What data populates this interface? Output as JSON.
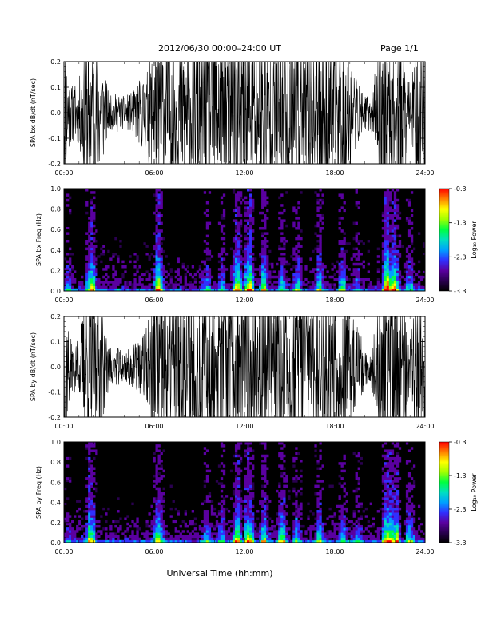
{
  "header": {
    "title": "2012/06/30   00:00–24:00 UT",
    "page": "Page 1/1"
  },
  "footer": {
    "xlabel": "Universal Time (hh:mm)"
  },
  "colors": {
    "trace": "#000000",
    "spectrogram_background": "#000000",
    "colormap": [
      "#000000",
      "#2a0050",
      "#5a00a0",
      "#3030ff",
      "#00a0ff",
      "#00e0c0",
      "#00ff40",
      "#a0ff00",
      "#ffff00",
      "#ff8000",
      "#ff0000"
    ]
  },
  "chart_data": [
    {
      "type": "line",
      "ylabel": "SPA bx dB/dt (nT/sec)",
      "xlim": [
        "00:00",
        "24:00"
      ],
      "ylim": [
        -0.2,
        0.2
      ],
      "xticks": [
        "00:00",
        "06:00",
        "12:00",
        "18:00",
        "24:00"
      ],
      "yticks": [
        "-0.2",
        "-0.1",
        "0.0",
        "0.1",
        "0.2"
      ],
      "series": [
        {
          "x_hours": [
            0,
            0.5,
            1,
            1.5,
            1.8,
            2,
            2.5,
            3,
            3.5,
            4,
            4.5,
            5,
            5.5,
            5.8,
            6.2,
            6.5,
            7,
            7.5,
            8,
            8.5,
            9,
            9.5,
            10,
            10.5,
            10.8,
            11,
            11.5,
            12,
            12.5,
            13,
            13.5,
            14,
            14.5,
            15,
            15.5,
            16,
            16.5,
            17,
            17.5,
            18,
            18.5,
            19,
            19.5,
            20,
            20.5,
            21,
            21.3,
            21.6,
            22,
            22.5,
            23,
            23.5,
            24
          ],
          "envelope_nT_per_s": [
            0.2,
            0.07,
            0.08,
            0.2,
            0.2,
            0.2,
            0.15,
            0.04,
            0.05,
            0.04,
            0.05,
            0.08,
            0.1,
            0.15,
            0.2,
            0.2,
            0.2,
            0.2,
            0.2,
            0.2,
            0.2,
            0.2,
            0.2,
            0.2,
            0.2,
            0.2,
            0.2,
            0.2,
            0.2,
            0.2,
            0.2,
            0.2,
            0.2,
            0.2,
            0.2,
            0.2,
            0.2,
            0.2,
            0.2,
            0.2,
            0.2,
            0.15,
            0.08,
            0.04,
            0.05,
            0.2,
            0.2,
            0.2,
            0.2,
            0.2,
            0.06,
            0.2,
            0.2
          ]
        }
      ]
    },
    {
      "type": "heatmap",
      "ylabel": "SPA bx Freq (Hz)",
      "xlim": [
        "00:00",
        "24:00"
      ],
      "ylim": [
        0.0,
        1.0
      ],
      "xticks": [
        "00:00",
        "06:00",
        "12:00",
        "18:00",
        "24:00"
      ],
      "yticks": [
        "0.0",
        "0.2",
        "0.4",
        "0.6",
        "0.8",
        "1.0"
      ],
      "colorbar": {
        "label": "Log₁₀ Power",
        "range": [
          -3.3,
          -0.3
        ],
        "ticks": [
          "-0.3",
          "-1.3",
          "-2.3",
          "-3.3"
        ]
      },
      "activity_hours": [
        0.3,
        1.8,
        6.3,
        9.5,
        10.5,
        11.5,
        12.3,
        13.3,
        14.5,
        15.5,
        17.0,
        18.5,
        19.5,
        21.5,
        22.0,
        23.0
      ],
      "activity_level": [
        0.45,
        0.9,
        0.85,
        0.5,
        0.55,
        0.8,
        0.95,
        0.7,
        0.6,
        0.55,
        0.6,
        0.55,
        0.45,
        1.0,
        0.9,
        0.55
      ]
    },
    {
      "type": "line",
      "ylabel": "SPA by dB/dt (nT/sec)",
      "xlim": [
        "00:00",
        "24:00"
      ],
      "ylim": [
        -0.2,
        0.2
      ],
      "xticks": [
        "00:00",
        "06:00",
        "12:00",
        "18:00",
        "24:00"
      ],
      "yticks": [
        "-0.2",
        "-0.1",
        "0.0",
        "0.1",
        "0.2"
      ],
      "series": [
        {
          "x_hours": [
            0,
            0.5,
            1,
            1.5,
            1.8,
            2,
            2.5,
            3,
            3.5,
            4,
            4.5,
            5,
            5.5,
            5.8,
            6.2,
            6.5,
            7,
            7.5,
            8,
            8.5,
            9,
            9.5,
            10,
            10.5,
            10.8,
            11,
            11.5,
            12,
            12.5,
            13,
            13.5,
            14,
            14.5,
            15,
            15.5,
            16,
            16.5,
            17,
            17.5,
            18,
            18.5,
            19,
            19.5,
            20,
            20.5,
            21,
            21.3,
            21.6,
            22,
            22.5,
            23,
            23.5,
            24
          ],
          "envelope_nT_per_s": [
            0.2,
            0.06,
            0.07,
            0.2,
            0.2,
            0.2,
            0.15,
            0.05,
            0.05,
            0.04,
            0.05,
            0.07,
            0.1,
            0.15,
            0.2,
            0.2,
            0.2,
            0.2,
            0.2,
            0.2,
            0.2,
            0.2,
            0.2,
            0.2,
            0.2,
            0.2,
            0.2,
            0.2,
            0.2,
            0.2,
            0.2,
            0.2,
            0.2,
            0.2,
            0.2,
            0.2,
            0.2,
            0.2,
            0.2,
            0.2,
            0.2,
            0.15,
            0.1,
            0.05,
            0.06,
            0.2,
            0.2,
            0.2,
            0.2,
            0.2,
            0.07,
            0.2,
            0.2
          ]
        }
      ]
    },
    {
      "type": "heatmap",
      "ylabel": "SPA by Freq (Hz)",
      "xlim": [
        "00:00",
        "24:00"
      ],
      "ylim": [
        0.0,
        1.0
      ],
      "xticks": [
        "00:00",
        "06:00",
        "12:00",
        "18:00",
        "24:00"
      ],
      "yticks": [
        "0.0",
        "0.2",
        "0.4",
        "0.6",
        "0.8",
        "1.0"
      ],
      "colorbar": {
        "label": "Log₁₀ Power",
        "range": [
          -3.3,
          -0.3
        ],
        "ticks": [
          "-0.3",
          "-1.3",
          "-2.3",
          "-3.3"
        ]
      },
      "activity_hours": [
        0.3,
        1.8,
        6.3,
        9.5,
        10.5,
        11.5,
        12.3,
        13.3,
        14.5,
        15.5,
        17.0,
        18.5,
        19.5,
        21.5,
        22.0,
        23.0
      ],
      "activity_level": [
        0.45,
        0.9,
        0.85,
        0.55,
        0.6,
        0.8,
        0.95,
        0.7,
        0.65,
        0.55,
        0.6,
        0.55,
        0.5,
        1.0,
        0.9,
        0.6
      ]
    }
  ]
}
